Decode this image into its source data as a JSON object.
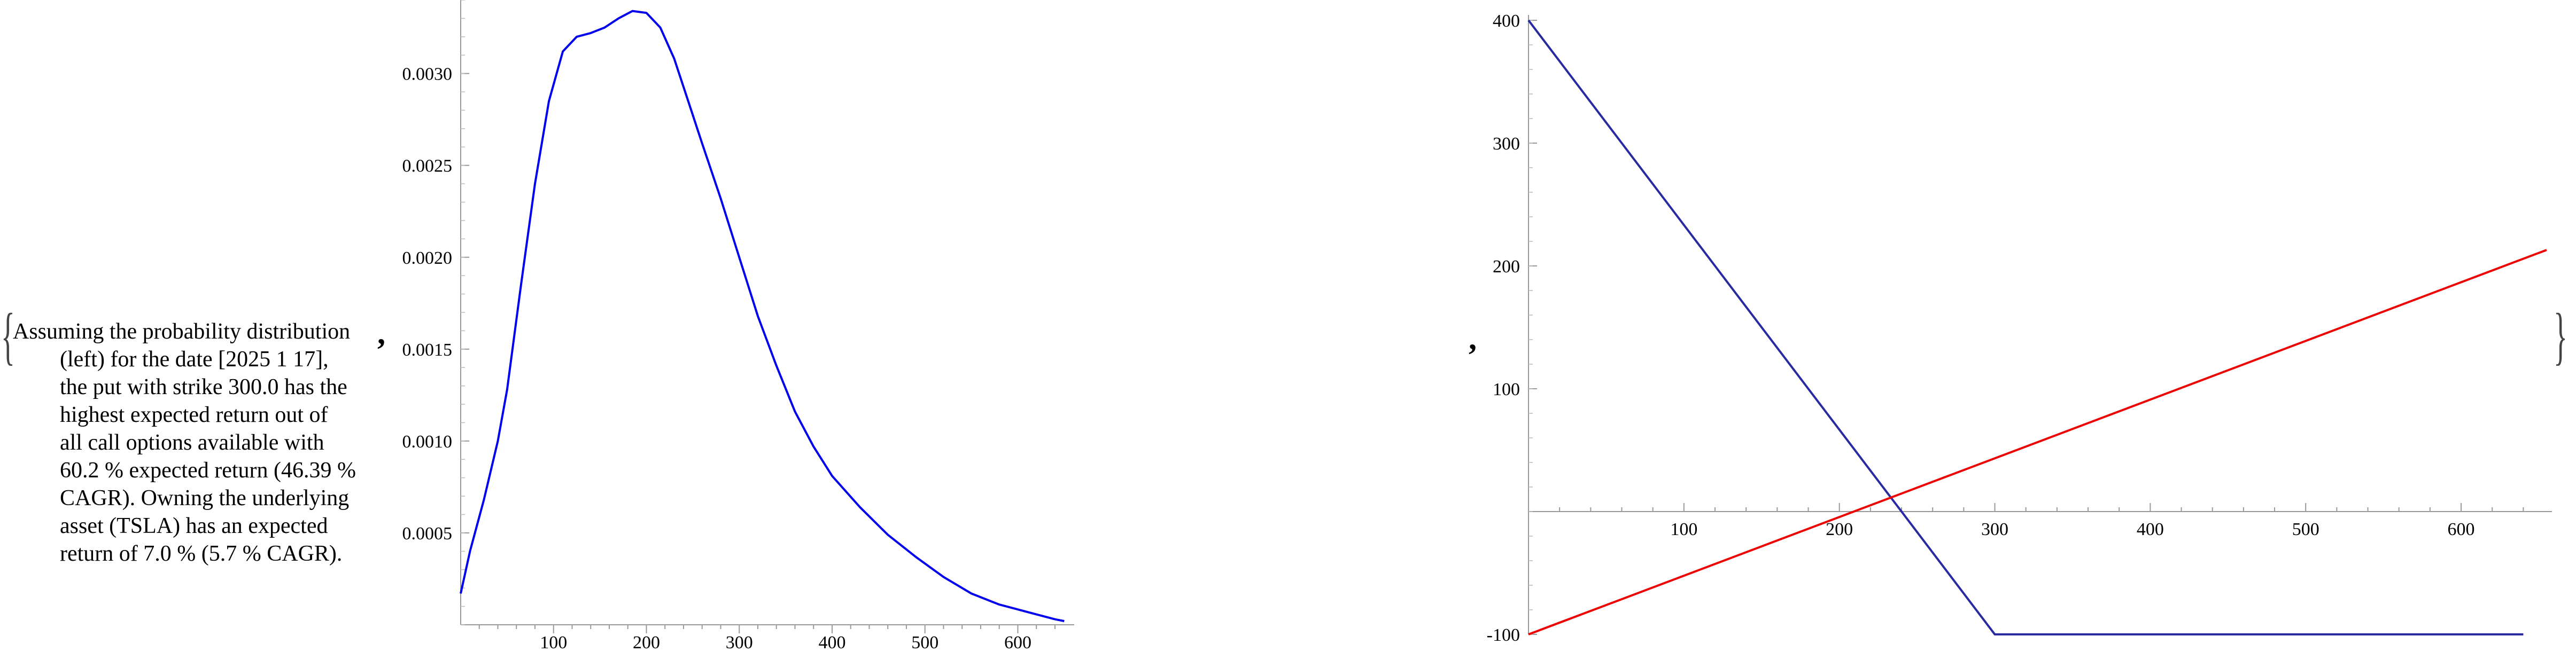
{
  "description": {
    "lines": [
      "Assuming the probability distribution",
      "(left) for the date [2025 1 17],",
      "the put with strike 300.0 has the",
      "highest expected return out of",
      "all call options available with",
      "60.2 % expected return (46.39 %",
      "CAGR). Owning the underlying",
      "asset (TSLA) has an expected",
      "return of 7.0 % (5.7 % CAGR)."
    ]
  },
  "list_brackets": {
    "open": "{",
    "close": "}",
    "separator": ","
  },
  "chart_data": [
    {
      "type": "line",
      "title": "",
      "xlabel": "",
      "ylabel": "",
      "xlim": [
        0,
        655
      ],
      "ylim": [
        0,
        0.0034
      ],
      "x_ticks": [
        100,
        200,
        300,
        400,
        500,
        600
      ],
      "y_ticks": [
        0.0005,
        0.001,
        0.0015,
        0.002,
        0.0025,
        0.003
      ],
      "y_tick_labels": [
        "0.0005",
        "0.0010",
        "0.0015",
        "0.0020",
        "0.0025",
        "0.0030"
      ],
      "series": [
        {
          "color": "#0000ee",
          "x": [
            0,
            10,
            25,
            40,
            50,
            65,
            80,
            95,
            110,
            125,
            140,
            155,
            170,
            185,
            200,
            215,
            230,
            245,
            260,
            280,
            300,
            320,
            340,
            360,
            380,
            400,
            430,
            460,
            490,
            520,
            550,
            580,
            610,
            640,
            650
          ],
          "y": [
            0.00017,
            0.0004,
            0.00068,
            0.001,
            0.00128,
            0.00185,
            0.0024,
            0.00285,
            0.00312,
            0.0032,
            0.00322,
            0.00325,
            0.0033,
            0.00334,
            0.00333,
            0.00325,
            0.00308,
            0.00285,
            0.00262,
            0.00232,
            0.002,
            0.00168,
            0.00141,
            0.00116,
            0.00097,
            0.00081,
            0.00064,
            0.00049,
            0.00037,
            0.00026,
            0.00017,
            0.00011,
            7e-05,
            3e-05,
            2e-05
          ]
        }
      ]
    },
    {
      "type": "line",
      "title": "",
      "xlabel": "",
      "ylabel": "",
      "xlim": [
        0,
        655
      ],
      "ylim": [
        -100,
        400
      ],
      "x_ticks": [
        100,
        200,
        300,
        400,
        500,
        600
      ],
      "y_ticks": [
        -100,
        100,
        200,
        300,
        400
      ],
      "series": [
        {
          "color": "#2a2aa0",
          "x": [
            0,
            300,
            640
          ],
          "y": [
            400,
            -100,
            -100
          ]
        },
        {
          "color": "#ee0000",
          "x": [
            0,
            655
          ],
          "y": [
            -100,
            213
          ]
        }
      ]
    }
  ]
}
